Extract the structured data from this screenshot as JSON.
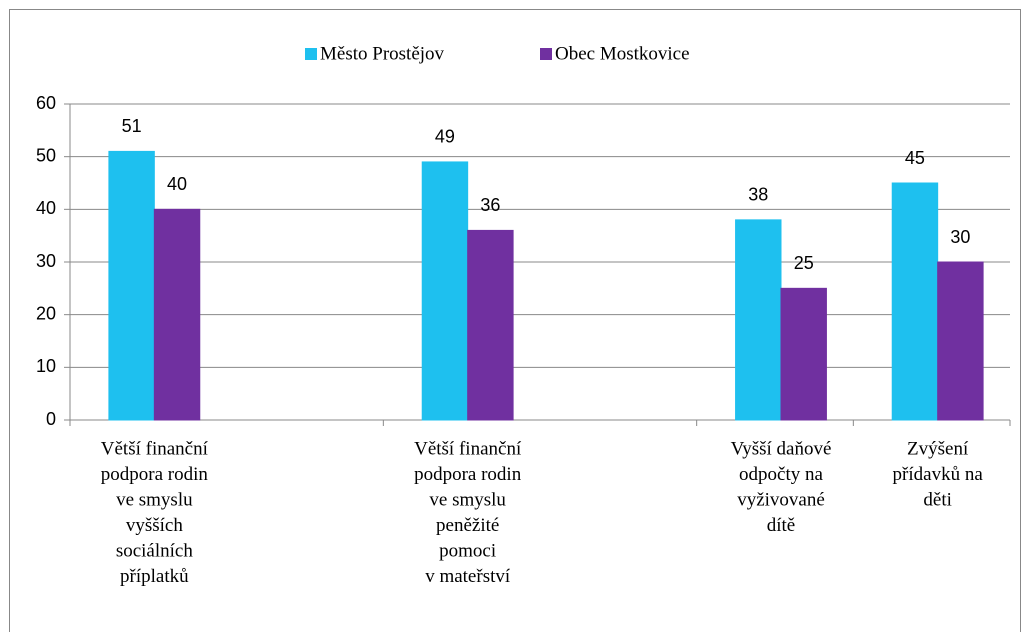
{
  "chart_data": {
    "type": "bar",
    "categories": [
      [
        "Větší finanční",
        "podpora rodin",
        "ve smyslu",
        "vyšších",
        "sociálních",
        "příplatků"
      ],
      null,
      [
        "Větší finanční",
        "podpora rodin",
        "ve smyslu",
        "peněžité",
        "pomoci",
        "v mateřství"
      ],
      null,
      [
        "Vyšší daňové",
        "odpočty na",
        "vyživované",
        "dítě"
      ],
      [
        "Zvýšení",
        "přídavků na",
        "děti"
      ]
    ],
    "series": [
      {
        "name": "Město Prostějov",
        "color": "#1ec0ef",
        "values": [
          51,
          null,
          49,
          null,
          38,
          45
        ]
      },
      {
        "name": "Obec Mostkovice",
        "color": "#7030a0",
        "values": [
          40,
          null,
          36,
          null,
          25,
          30
        ]
      }
    ],
    "ylim": [
      0,
      60
    ],
    "yticks": [
      0,
      10,
      20,
      30,
      40,
      50,
      60
    ],
    "grid": true,
    "legend": "top"
  }
}
